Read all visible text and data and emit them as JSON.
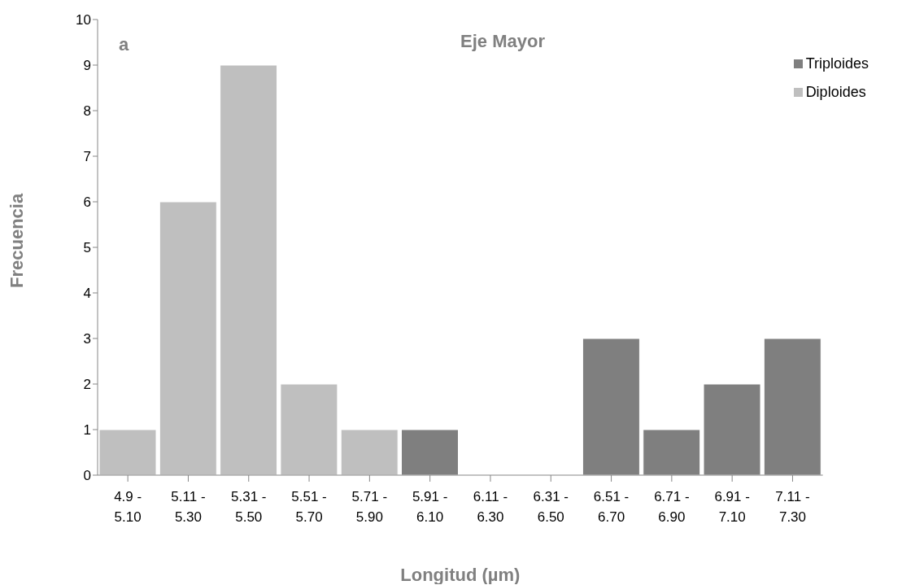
{
  "chart_data": {
    "type": "bar",
    "title": "Eje Mayor",
    "xlabel": "Longitud (µm)",
    "ylabel": "Frecuencia",
    "annotations": [
      "a"
    ],
    "categories": [
      "4.9 - 5.10",
      "5.11 - 5.30",
      "5.31 - 5.50",
      "5.51 - 5.70",
      "5.71 - 5.90",
      "5.91 - 6.10",
      "6.11 - 6.30",
      "6.31 - 6.50",
      "6.51 - 6.70",
      "6.71 - 6.90",
      "6.91 - 7.10",
      "7.11 - 7.30"
    ],
    "series": [
      {
        "name": "Diploides",
        "color": "#bfbfbf",
        "values": [
          1,
          6,
          9,
          2,
          1,
          null,
          null,
          null,
          null,
          null,
          null,
          null
        ]
      },
      {
        "name": "Triploides",
        "color": "#7f7f7f",
        "values": [
          null,
          null,
          null,
          null,
          null,
          1,
          0,
          0,
          3,
          1,
          2,
          3
        ]
      }
    ],
    "stacked": true,
    "ylim": [
      0,
      10
    ],
    "yticks": [
      0,
      1,
      2,
      3,
      4,
      5,
      6,
      7,
      8,
      9,
      10
    ],
    "grid": false,
    "legend": "top right"
  }
}
